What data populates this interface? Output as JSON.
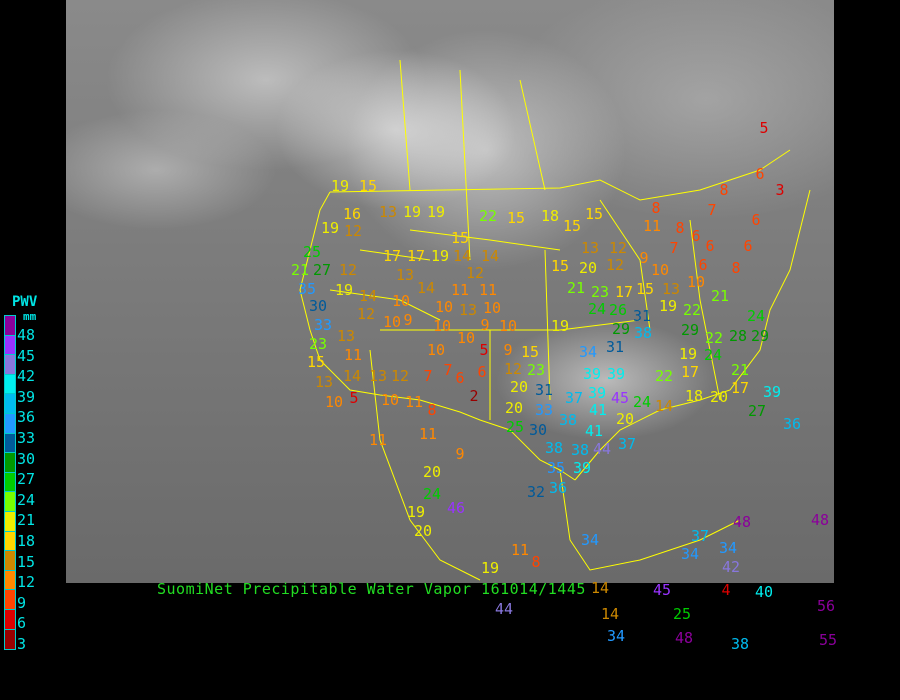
{
  "title": "SuomiNet Precipitable Water Vapor 161014/1445",
  "legend": {
    "title": "PWV",
    "unit": "mm",
    "labels": [
      "48",
      "45",
      "42",
      "39",
      "36",
      "33",
      "30",
      "27",
      "24",
      "21",
      "18",
      "15",
      "12",
      "9",
      "6",
      "3"
    ],
    "colors": [
      "#8b009b",
      "#9933ff",
      "#8877dd",
      "#00eeee",
      "#00bbee",
      "#2299ff",
      "#005a9a",
      "#009900",
      "#00cc00",
      "#77ff00",
      "#eeee00",
      "#ffd700",
      "#cc8800",
      "#ff8800",
      "#ff4400",
      "#dd0000",
      "#990000"
    ]
  },
  "map": {
    "background": "infrared satellite imagery",
    "border_color": "#ffff00",
    "station_values": [
      19,
      15,
      16,
      13,
      19,
      19,
      19,
      12,
      25,
      21,
      27,
      12,
      35,
      19,
      14,
      30,
      33,
      23,
      12,
      10,
      9,
      10,
      17,
      17,
      19,
      14,
      15,
      14,
      12,
      11,
      11,
      13,
      14,
      10,
      13,
      10,
      10,
      9,
      10,
      10,
      10,
      5,
      15,
      13,
      11,
      13,
      14,
      13,
      12,
      7,
      7,
      6,
      6,
      9,
      15,
      12,
      23,
      20,
      2,
      5,
      10,
      10,
      11,
      8,
      11,
      11,
      9,
      20,
      24,
      19,
      20,
      46,
      11,
      8,
      19,
      44,
      22,
      15,
      18,
      15,
      15,
      13,
      12,
      12,
      15,
      20,
      21,
      23,
      17,
      24,
      26,
      31,
      38,
      29,
      19,
      34,
      31,
      39,
      39,
      39,
      45,
      41,
      24,
      20,
      31,
      33,
      20,
      25,
      30,
      38,
      37,
      41,
      44,
      37,
      38,
      38,
      35,
      39,
      36,
      32,
      5,
      6,
      3,
      8,
      7,
      8,
      11,
      8,
      6,
      6,
      7,
      9,
      6,
      8,
      6,
      6,
      10,
      13,
      10,
      15,
      19,
      22,
      21,
      29,
      22,
      19,
      24,
      28,
      29,
      24,
      22,
      17,
      21,
      17,
      39,
      20,
      27,
      36,
      14,
      18,
      37,
      34,
      34,
      48,
      42,
      45,
      4,
      40,
      48,
      14,
      25,
      34,
      48,
      38,
      56,
      55,
      34,
      14
    ]
  }
}
